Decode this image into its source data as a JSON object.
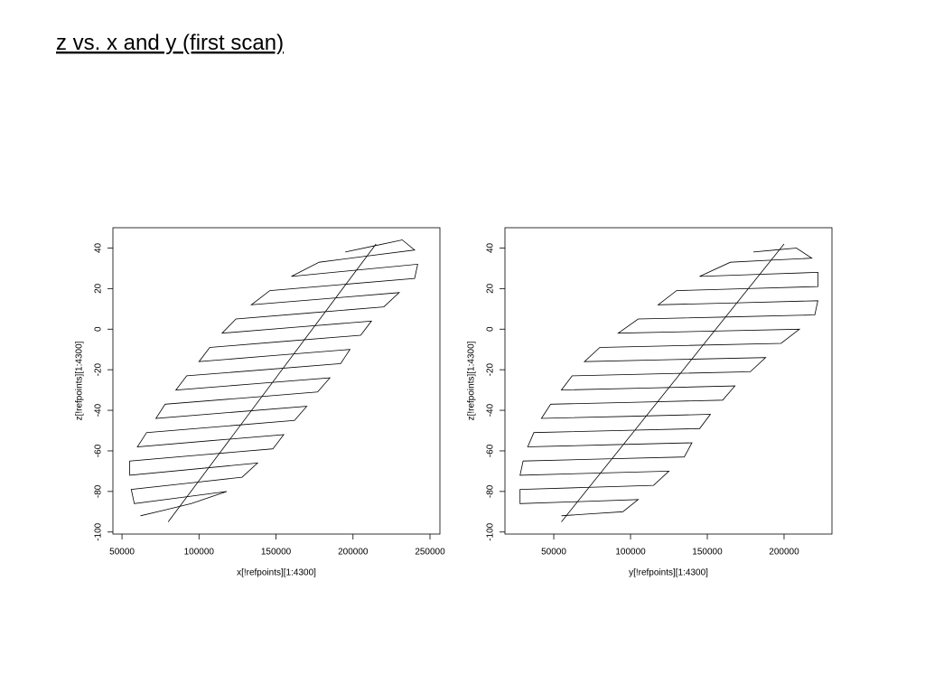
{
  "slide_title": "z vs. x and y (first scan)",
  "chart_data": [
    {
      "type": "line",
      "xlabel": "x[!refpoints][1:4300]",
      "ylabel": "z[!refpoints][1:4300]",
      "color": "#000000",
      "xlim": [
        44100,
        256450
      ],
      "ylim": [
        -101,
        50
      ],
      "xticks": [
        50000,
        100000,
        150000,
        200000,
        250000
      ],
      "yticks": [
        -100,
        -80,
        -60,
        -40,
        -20,
        0,
        20,
        40
      ],
      "x": [
        62000,
        78500,
        95000,
        118000,
        88000,
        58000,
        56000,
        92000,
        128000,
        138000,
        96500,
        55000,
        55000,
        101500,
        148000,
        155000,
        107500,
        60000,
        66000,
        114000,
        162000,
        170000,
        121000,
        72000,
        78000,
        127500,
        177000,
        185000,
        135000,
        85000,
        92000,
        142000,
        192000,
        198000,
        149000,
        100000,
        107000,
        156000,
        205000,
        212000,
        163500,
        115000,
        124000,
        172000,
        220000,
        230000,
        182000,
        134000,
        146000,
        193000,
        240000,
        242000,
        201000,
        160000,
        178000,
        209000,
        240000,
        232000,
        213500,
        195000,
        null,
        80000,
        215000
      ],
      "y": [
        -92,
        -89,
        -86,
        -80,
        -83,
        -86,
        -79,
        -76,
        -73,
        -66,
        -69,
        -72,
        -65,
        -62,
        -59,
        -52,
        -55,
        -58,
        -51,
        -48,
        -45,
        -38,
        -41,
        -44,
        -37,
        -34,
        -31,
        -24,
        -27,
        -30,
        -23,
        -20,
        -17,
        -10,
        -13,
        -16,
        -9,
        -6,
        -3,
        4,
        1,
        -2,
        5,
        8,
        11,
        18,
        15,
        12,
        19,
        22,
        25,
        32,
        29,
        26,
        33,
        36,
        39,
        44,
        41,
        38,
        null,
        -95,
        42
      ]
    },
    {
      "type": "line",
      "xlabel": "y[!refpoints][1:4300]",
      "ylabel": "z[!refpoints][1:4300]",
      "color": "#000000",
      "xlim": [
        18200,
        231200
      ],
      "ylim": [
        -101,
        50
      ],
      "xticks": [
        50000,
        100000,
        150000,
        200000
      ],
      "yticks": [
        -100,
        -80,
        -60,
        -40,
        -20,
        0,
        20,
        40
      ],
      "x": [
        55000,
        75000,
        95000,
        105000,
        66500,
        28000,
        28000,
        71500,
        115000,
        125000,
        76500,
        28000,
        30000,
        82500,
        135000,
        140000,
        86500,
        33000,
        37000,
        91000,
        145000,
        152000,
        97000,
        42000,
        48000,
        104000,
        160000,
        168000,
        111500,
        55000,
        62000,
        120000,
        178000,
        188000,
        129000,
        70000,
        80000,
        139000,
        198000,
        210000,
        151000,
        92000,
        105000,
        162500,
        220000,
        222000,
        170000,
        118000,
        130000,
        176000,
        222000,
        222000,
        183500,
        145000,
        165000,
        191500,
        218000,
        208000,
        194000,
        180000,
        null,
        55000,
        200000
      ],
      "y": [
        -92,
        -91,
        -90,
        -84,
        -85,
        -86,
        -79,
        -78,
        -77,
        -70,
        -71,
        -72,
        -65,
        -64,
        -63,
        -56,
        -57,
        -58,
        -51,
        -50,
        -49,
        -42,
        -43,
        -44,
        -37,
        -36,
        -35,
        -28,
        -29,
        -30,
        -23,
        -22,
        -21,
        -14,
        -15,
        -16,
        -9,
        -8,
        -7,
        0,
        -1,
        -2,
        5,
        6,
        7,
        14,
        13,
        12,
        19,
        20,
        21,
        28,
        27,
        26,
        33,
        34,
        35,
        40,
        39,
        38,
        null,
        -95,
        42
      ]
    }
  ]
}
